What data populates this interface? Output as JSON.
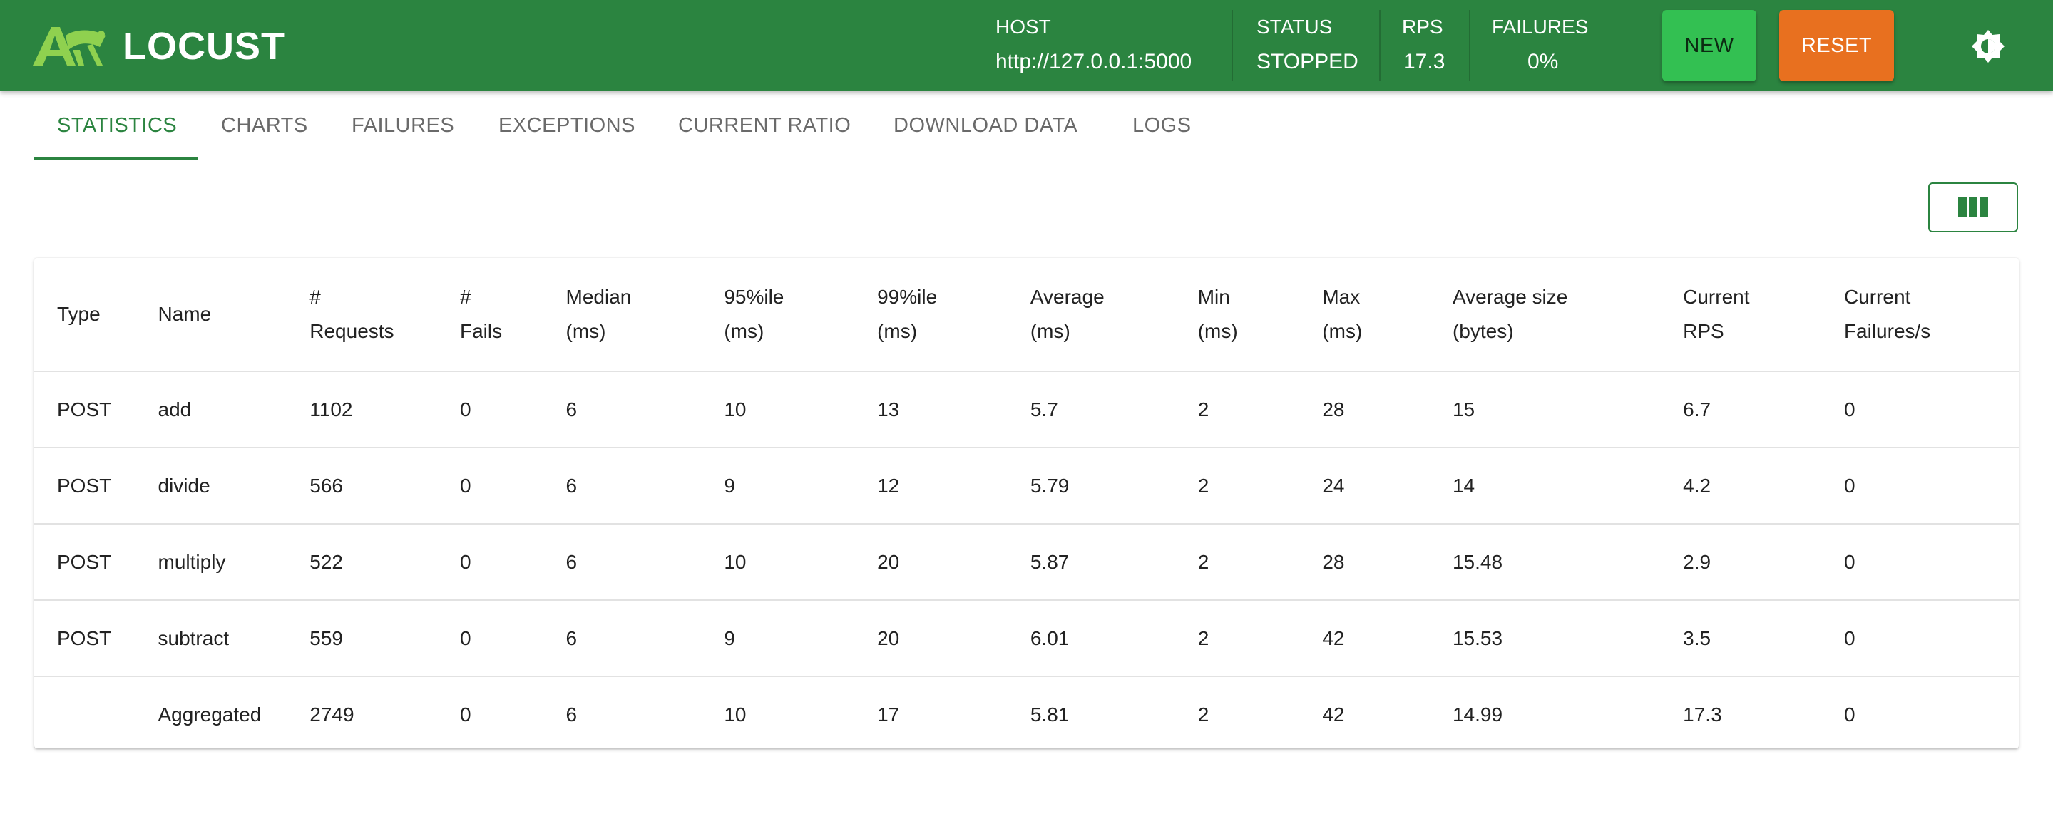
{
  "app": {
    "name": "LOCUST"
  },
  "header": {
    "host": {
      "label": "HOST",
      "value": "http://127.0.0.1:5000"
    },
    "status": {
      "label": "STATUS",
      "value": "STOPPED"
    },
    "rps": {
      "label": "RPS",
      "value": "17.3"
    },
    "failures": {
      "label": "FAILURES",
      "value": "0%"
    },
    "new_label": "NEW",
    "reset_label": "RESET",
    "theme_icon": "theme-toggle-icon"
  },
  "tabs": [
    {
      "label": "STATISTICS",
      "active": true
    },
    {
      "label": "CHARTS"
    },
    {
      "label": "FAILURES"
    },
    {
      "label": "EXCEPTIONS"
    },
    {
      "label": "CURRENT RATIO"
    },
    {
      "label": "DOWNLOAD DATA"
    },
    {
      "label": "LOGS"
    }
  ],
  "toolbar": {
    "columns_icon": "view-columns-icon"
  },
  "table": {
    "headers": [
      [
        "Type"
      ],
      [
        "Name"
      ],
      [
        "#",
        "Requests"
      ],
      [
        "#",
        "Fails"
      ],
      [
        "Median",
        "(ms)"
      ],
      [
        "95%ile",
        "(ms)"
      ],
      [
        "99%ile",
        "(ms)"
      ],
      [
        "Average",
        "(ms)"
      ],
      [
        "Min",
        "(ms)"
      ],
      [
        "Max",
        "(ms)"
      ],
      [
        "Average size",
        "(bytes)"
      ],
      [
        "Current",
        "RPS"
      ],
      [
        "Current",
        "Failures/s"
      ]
    ],
    "rows": [
      [
        "POST",
        "add",
        "1102",
        "0",
        "6",
        "10",
        "13",
        "5.7",
        "2",
        "28",
        "15",
        "6.7",
        "0"
      ],
      [
        "POST",
        "divide",
        "566",
        "0",
        "6",
        "9",
        "12",
        "5.79",
        "2",
        "24",
        "14",
        "4.2",
        "0"
      ],
      [
        "POST",
        "multiply",
        "522",
        "0",
        "6",
        "10",
        "20",
        "5.87",
        "2",
        "28",
        "15.48",
        "2.9",
        "0"
      ],
      [
        "POST",
        "subtract",
        "559",
        "0",
        "6",
        "9",
        "20",
        "6.01",
        "2",
        "42",
        "15.53",
        "3.5",
        "0"
      ],
      [
        "",
        "Aggregated",
        "2749",
        "0",
        "6",
        "10",
        "17",
        "5.81",
        "2",
        "42",
        "14.99",
        "17.3",
        "0"
      ]
    ]
  },
  "colors": {
    "brand": "#2b8440",
    "new_button": "#33c052",
    "reset_button": "#e8701f"
  }
}
